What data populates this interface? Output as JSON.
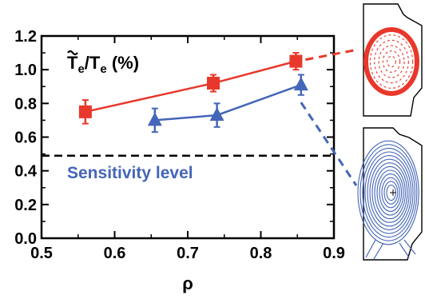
{
  "chart_data": {
    "type": "scatter",
    "title": "T̃e/Te (%)",
    "title_main": "T",
    "title_sub1": "e",
    "title_slash": "/T",
    "title_sub2": "e",
    "title_unit": " (%)",
    "xlabel": "ρ",
    "ylabel": "",
    "xlim": [
      0.5,
      0.9
    ],
    "ylim": [
      0.0,
      1.2
    ],
    "x_ticks": [
      "0.5",
      "0.6",
      "0.7",
      "0.8",
      "0.9"
    ],
    "y_ticks": [
      "0.0",
      "0.2",
      "0.4",
      "0.6",
      "0.8",
      "1.0",
      "1.2"
    ],
    "grid": false,
    "series": [
      {
        "marker": "square",
        "color": "#e8382b",
        "points": [
          {
            "x": 0.56,
            "y": 0.75,
            "err": 0.07
          },
          {
            "x": 0.735,
            "y": 0.92,
            "err": 0.05
          },
          {
            "x": 0.848,
            "y": 1.05,
            "err": 0.05
          }
        ]
      },
      {
        "marker": "triangle",
        "color": "#4466b8",
        "points": [
          {
            "x": 0.655,
            "y": 0.7,
            "err": 0.07
          },
          {
            "x": 0.74,
            "y": 0.73,
            "err": 0.07
          },
          {
            "x": 0.855,
            "y": 0.91,
            "err": 0.06
          }
        ]
      }
    ],
    "sensitivity": {
      "y": 0.49,
      "label": "Sensitivity level",
      "label_color": "#4466b8"
    },
    "insets": {
      "top": {
        "color": "#e8382b",
        "line_color": "#e8382b"
      },
      "bottom": {
        "color": "#4466b8",
        "line_color": "#4466b8"
      }
    }
  }
}
